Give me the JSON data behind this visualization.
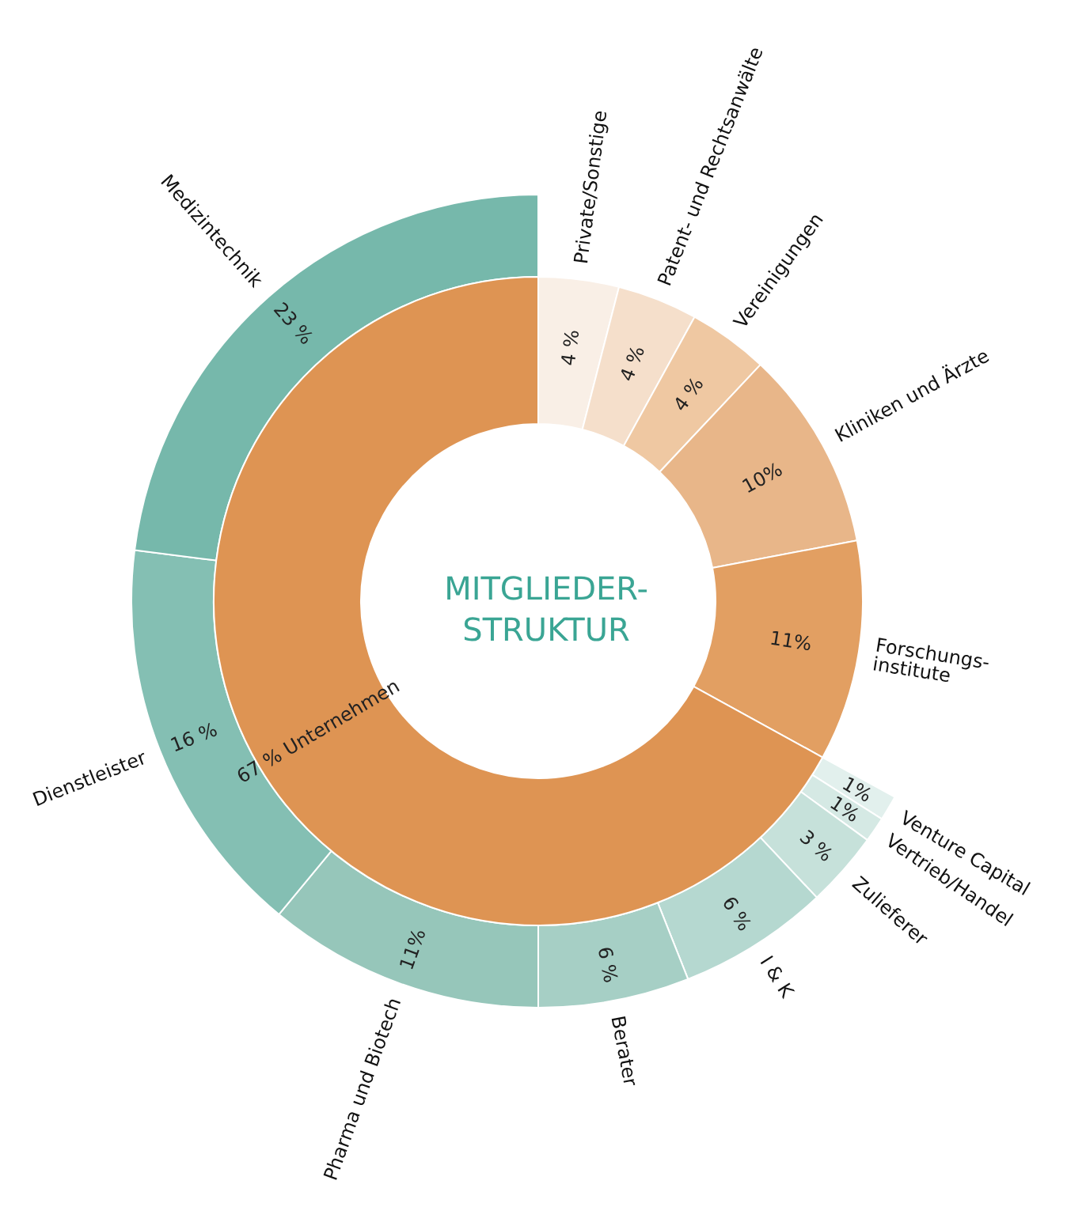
{
  "chart_data": [
    {
      "type": "donut",
      "title": "MITGLIEDER-\nSTRUKTUR",
      "legend": false,
      "categories": [
        "Private/Sonstige",
        "Patent- und Rechtsanwälte",
        "Vereinigungen",
        "Kliniken und Ärzte",
        "Forschungs-\ninstitute",
        null
      ],
      "values": [
        4,
        4,
        4,
        10,
        11,
        67
      ],
      "colors": [
        "#f9efe6",
        "#f5dfcb",
        "#efc8a2",
        "#e8b689",
        "#e29f62",
        "#de9453"
      ],
      "value_labels": [
        "4 %",
        "4 %",
        "4 %",
        "10%",
        "11%",
        "67 % Unternehmen"
      ]
    },
    {
      "type": "donut",
      "legend": false,
      "categories": [
        "Venture Capital",
        "Vertrieb/Handel",
        "Zulieferer",
        "I & K",
        "Berater",
        "Pharma und Biotech",
        "Dienstleister",
        "Medizintechnik"
      ],
      "values": [
        1,
        1,
        3,
        6,
        6,
        11,
        16,
        23
      ],
      "colors": [
        "#e2f0ed",
        "#d5e9e4",
        "#c6e1da",
        "#b5d8d0",
        "#a6cfc5",
        "#96c6ba",
        "#84bfb3",
        "#76b8ab"
      ],
      "value_labels": [
        "1%",
        "1%",
        "3 %",
        "6 %",
        "6 %",
        "11%",
        "16 %",
        "23 %"
      ]
    }
  ]
}
